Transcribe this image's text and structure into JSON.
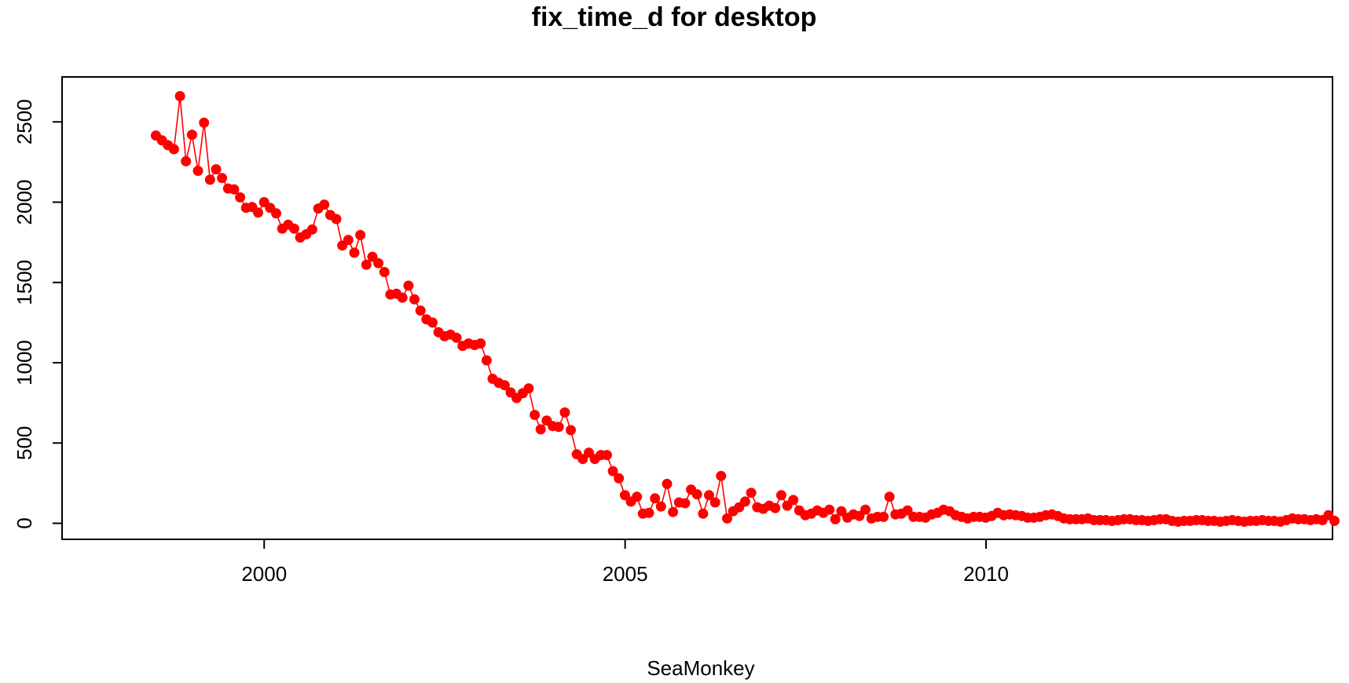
{
  "chart_data": {
    "type": "line",
    "title": "fix_time_d for desktop",
    "xlabel": "SeaMonkey",
    "ylabel": "",
    "xlim": [
      1997.2,
      2014.8
    ],
    "ylim": [
      -100,
      2780
    ],
    "xticks": [
      2000,
      2005,
      2010
    ],
    "yticks": [
      0,
      500,
      1000,
      1500,
      2000,
      2500
    ],
    "grid": false,
    "series_color": "#ff0000",
    "x_start": 1998.5,
    "x_step": 0.0833,
    "series": [
      {
        "values": [
          2415,
          2385,
          2355,
          2330,
          2660,
          2255,
          2420,
          2195,
          2495,
          2140,
          2205,
          2150,
          2085,
          2080,
          2030,
          1965,
          1970,
          1935,
          2000,
          1965,
          1930,
          1835,
          1860,
          1835,
          1780,
          1800,
          1830,
          1960,
          1985,
          1920,
          1895,
          1730,
          1765,
          1685,
          1795,
          1610,
          1660,
          1620,
          1565,
          1425,
          1430,
          1405,
          1480,
          1395,
          1325,
          1270,
          1250,
          1190,
          1165,
          1175,
          1155,
          1105,
          1120,
          1110,
          1120,
          1015,
          900,
          875,
          860,
          815,
          780,
          810,
          840,
          675,
          585,
          640,
          605,
          600,
          690,
          580,
          430,
          400,
          440,
          400,
          425,
          425,
          325,
          280,
          175,
          135,
          165,
          60,
          65,
          155,
          105,
          245,
          70,
          130,
          125,
          210,
          180,
          60,
          175,
          130,
          295,
          30,
          75,
          100,
          135,
          190,
          100,
          90,
          110,
          95,
          175,
          110,
          145,
          80,
          50,
          60,
          80,
          65,
          85,
          25,
          75,
          35,
          55,
          45,
          85,
          30,
          40,
          40,
          165,
          55,
          60,
          80,
          40,
          40,
          35,
          55,
          65,
          85,
          75,
          50,
          40,
          30,
          40,
          40,
          35,
          45,
          65,
          50,
          55,
          50,
          45,
          35,
          35,
          40,
          50,
          55,
          45,
          30,
          25,
          25,
          25,
          30,
          20,
          20,
          20,
          15,
          20,
          25,
          25,
          20,
          20,
          15,
          20,
          25,
          25,
          15,
          10,
          15,
          15,
          20,
          20,
          15,
          15,
          10,
          15,
          20,
          15,
          10,
          15,
          15,
          20,
          15,
          15,
          10,
          20,
          30,
          25,
          25,
          20,
          25,
          20,
          50,
          15
        ]
      }
    ]
  }
}
